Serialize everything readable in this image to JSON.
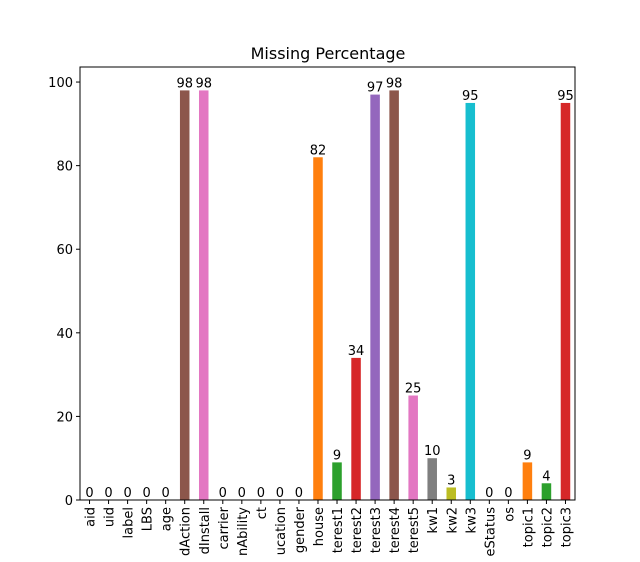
{
  "chart_data": {
    "type": "bar",
    "title": "Missing Percentage",
    "categories": [
      "aid",
      "uid",
      "label",
      "LBS",
      "age",
      "dAction",
      "dInstall",
      "carrier",
      "nAbility",
      "ct",
      "ucation",
      "gender",
      "house",
      "terest1",
      "terest2",
      "terest3",
      "terest4",
      "terest5",
      "kw1",
      "kw2",
      "kw3",
      "eStatus",
      "os",
      "topic1",
      "topic2",
      "topic3"
    ],
    "values": [
      0,
      0,
      0,
      0,
      0,
      98,
      98,
      0,
      0,
      0,
      0,
      0,
      82,
      9,
      34,
      97,
      98,
      25,
      10,
      3,
      95,
      0,
      0,
      9,
      4,
      95
    ],
    "colors": [
      "#1f77b4",
      "#ff7f0e",
      "#2ca02c",
      "#d62728",
      "#9467bd",
      "#8c564b",
      "#e377c2",
      "#7f7f7f",
      "#bcbd22",
      "#17becf",
      "#1f77b4",
      "#ff7f0e",
      "#ff7f0e",
      "#2ca02c",
      "#d62728",
      "#9467bd",
      "#8c564b",
      "#e377c2",
      "#7f7f7f",
      "#bcbd22",
      "#17becf",
      "#1f77b4",
      "#ff7f0e",
      "#ff7f0e",
      "#2ca02c",
      "#d62728"
    ],
    "ylim": [
      0,
      103.6
    ],
    "yticks": [
      0,
      20,
      40,
      60,
      80,
      100
    ]
  }
}
